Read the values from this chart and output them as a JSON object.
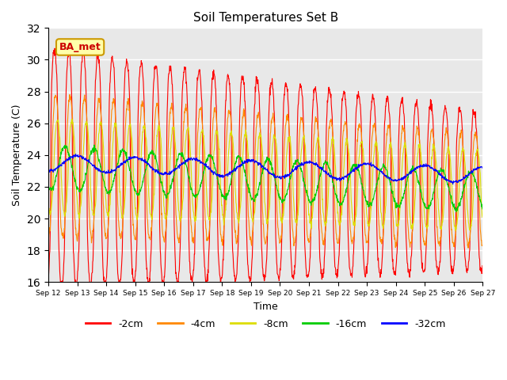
{
  "title": "Soil Temperatures Set B",
  "xlabel": "Time",
  "ylabel": "Soil Temperature (C)",
  "ylim": [
    16,
    32
  ],
  "yticks": [
    16,
    18,
    20,
    22,
    24,
    26,
    28,
    30,
    32
  ],
  "xlim_days": [
    12,
    27
  ],
  "xtick_days": [
    12,
    13,
    14,
    15,
    16,
    17,
    18,
    19,
    20,
    21,
    22,
    23,
    24,
    25,
    26,
    27
  ],
  "legend_labels": [
    "-2cm",
    "-4cm",
    "-8cm",
    "-16cm",
    "-32cm"
  ],
  "legend_colors": [
    "#ff0000",
    "#ff8800",
    "#dddd00",
    "#00cc00",
    "#0000ff"
  ],
  "annotation_text": "BA_met",
  "annotation_color": "#cc0000",
  "background_color": "#e8e8e8",
  "series_colors": [
    "#ff0000",
    "#ff8800",
    "#dddd00",
    "#00cc00",
    "#0000ff"
  ],
  "annotation_bg": "#ffffaa",
  "annotation_edge": "#cc9900"
}
